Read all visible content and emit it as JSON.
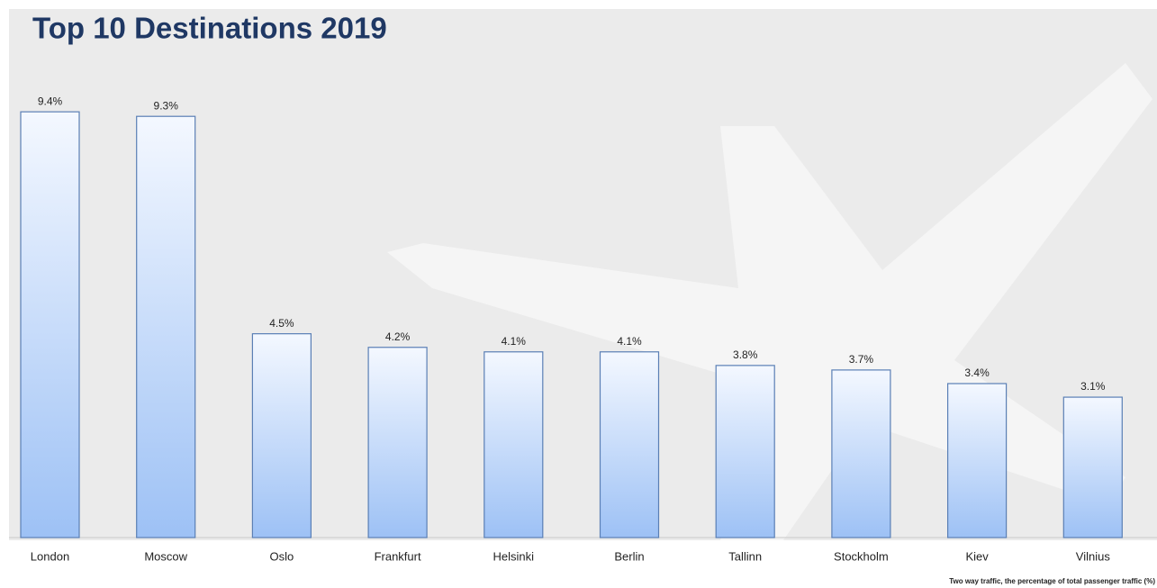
{
  "chart_data": {
    "type": "bar",
    "title": "Top 10 Destinations 2019",
    "categories": [
      "London",
      "Moscow",
      "Oslo",
      "Frankfurt",
      "Helsinki",
      "Berlin",
      "Tallinn",
      "Stockholm",
      "Kiev",
      "Vilnius"
    ],
    "values": [
      9.4,
      9.3,
      4.5,
      4.2,
      4.1,
      4.1,
      3.8,
      3.7,
      3.4,
      3.1
    ],
    "value_labels": [
      "9.4%",
      "9.3%",
      "4.5%",
      "4.2%",
      "4.1%",
      "4.1%",
      "3.8%",
      "3.7%",
      "3.4%",
      "3.1%"
    ],
    "color": "#9dc1f5",
    "note": "Two way traffic, the percentage of total passenger traffic (%)"
  }
}
